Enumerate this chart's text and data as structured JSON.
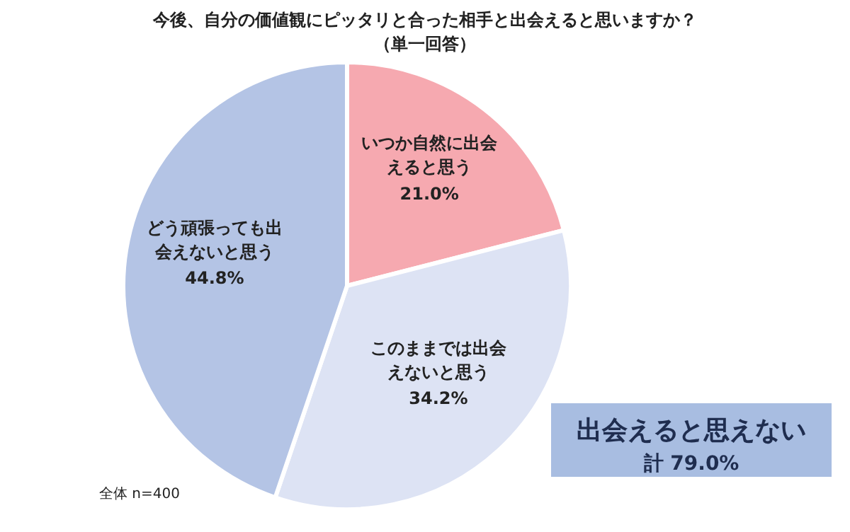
{
  "chart_data": {
    "type": "pie",
    "title": "今後、自分の価値観にピッタリと合った相手と出会えると思いますか？",
    "subtitle": "（単一回答）",
    "categories": [
      "いつか自然に出会えると思う",
      "このままでは出会えないと思う",
      "どう頑張っても出会えないと思う"
    ],
    "values": [
      21.0,
      34.2,
      44.8
    ],
    "colors": [
      "#f6a9b0",
      "#dde3f4",
      "#b4c4e5"
    ],
    "value_labels": [
      "21.0%",
      "34.2%",
      "44.8%"
    ],
    "annotations": [
      "全体 n=400",
      "出会えると思えない",
      "計 79.0%"
    ]
  }
}
